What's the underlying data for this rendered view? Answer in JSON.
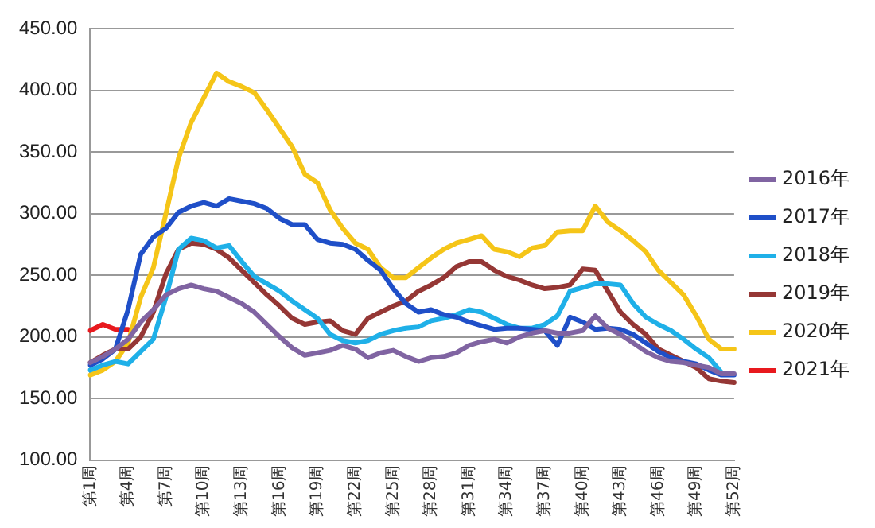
{
  "chart_data": {
    "type": "line",
    "categories": [
      "第1周",
      null,
      null,
      "第4周",
      null,
      null,
      "第7周",
      null,
      null,
      "第10周",
      null,
      null,
      "第13周",
      null,
      null,
      "第16周",
      null,
      null,
      "第19周",
      null,
      null,
      "第22周",
      null,
      null,
      "第25周",
      null,
      null,
      "第28周",
      null,
      null,
      "第31周",
      null,
      null,
      "第34周",
      null,
      null,
      "第37周",
      null,
      null,
      "第40周",
      null,
      null,
      "第43周",
      null,
      null,
      "第46周",
      null,
      null,
      "第49周",
      null,
      null,
      "第52周"
    ],
    "series": [
      {
        "name": "2016年",
        "color": "#8064a2",
        "values": [
          179,
          184,
          190,
          198,
          212,
          222,
          234,
          239,
          242,
          239,
          237,
          232,
          227,
          220,
          210,
          200,
          191,
          185,
          187,
          189,
          193,
          190,
          183,
          187,
          189,
          184,
          180,
          183,
          184,
          187,
          193,
          196,
          198,
          195,
          200,
          203,
          205,
          203,
          203,
          205,
          217,
          207,
          202,
          195,
          188,
          183,
          180,
          179,
          177,
          175,
          170,
          170
        ]
      },
      {
        "name": "2017年",
        "color": "#1f4fc8",
        "values": [
          177,
          182,
          190,
          222,
          267,
          281,
          288,
          301,
          306,
          309,
          306,
          312,
          310,
          308,
          304,
          296,
          291,
          291,
          279,
          276,
          275,
          271,
          262,
          254,
          239,
          227,
          220,
          222,
          218,
          216,
          212,
          209,
          206,
          207,
          207,
          206,
          205,
          193,
          216,
          212,
          206,
          207,
          206,
          202,
          195,
          188,
          183,
          180,
          178,
          173,
          169,
          169
        ]
      },
      {
        "name": "2018年",
        "color": "#1fb0e8",
        "values": [
          173,
          177,
          180,
          178,
          188,
          198,
          232,
          271,
          280,
          278,
          272,
          274,
          261,
          249,
          243,
          237,
          229,
          222,
          215,
          202,
          197,
          195,
          197,
          202,
          205,
          207,
          208,
          213,
          215,
          218,
          222,
          220,
          215,
          210,
          207,
          207,
          210,
          217,
          237,
          240,
          243,
          243,
          242,
          227,
          216,
          210,
          205,
          198,
          190,
          183,
          171,
          null
        ]
      },
      {
        "name": "2019年",
        "color": "#953735",
        "values": [
          179,
          185,
          190,
          190,
          200,
          220,
          251,
          271,
          276,
          275,
          271,
          264,
          254,
          244,
          234,
          225,
          215,
          210,
          212,
          213,
          205,
          202,
          215,
          220,
          225,
          229,
          237,
          242,
          248,
          257,
          261,
          261,
          254,
          249,
          246,
          242,
          239,
          240,
          242,
          255,
          254,
          237,
          220,
          210,
          202,
          190,
          185,
          180,
          175,
          166,
          164,
          163
        ]
      },
      {
        "name": "2020年",
        "color": "#f5c518",
        "values": [
          169,
          173,
          180,
          195,
          232,
          256,
          300,
          345,
          374,
          394,
          414,
          407,
          403,
          398,
          384,
          369,
          354,
          332,
          325,
          303,
          288,
          276,
          271,
          256,
          248,
          248,
          256,
          264,
          271,
          276,
          279,
          282,
          271,
          269,
          265,
          272,
          274,
          285,
          286,
          286,
          306,
          293,
          286,
          278,
          269,
          254,
          244,
          234,
          217,
          198,
          190,
          190
        ]
      },
      {
        "name": "2021年",
        "color": "#e8191e",
        "values": [
          205,
          210,
          206,
          206,
          null,
          null,
          null,
          null,
          null,
          null,
          null,
          null,
          null,
          null,
          null,
          null,
          null,
          null,
          null,
          null,
          null,
          null,
          null,
          null,
          null,
          null,
          null,
          null,
          null,
          null,
          null,
          null,
          null,
          null,
          null,
          null,
          null,
          null,
          null,
          null,
          null,
          null,
          null,
          null,
          null,
          null,
          null,
          null,
          null,
          null,
          null,
          null
        ]
      }
    ],
    "ylim": [
      100,
      450
    ],
    "yticks": [
      {
        "value": 100,
        "label": "100.00"
      },
      {
        "value": 150,
        "label": "150.00"
      },
      {
        "value": 200,
        "label": "200.00"
      },
      {
        "value": 250,
        "label": "250.00"
      },
      {
        "value": 300,
        "label": "300.00"
      },
      {
        "value": 350,
        "label": "350.00"
      },
      {
        "value": 400,
        "label": "400.00"
      },
      {
        "value": 450,
        "label": "450.00"
      }
    ],
    "grid": "y",
    "legend": "right",
    "marker": "none",
    "line_style": "solid"
  }
}
